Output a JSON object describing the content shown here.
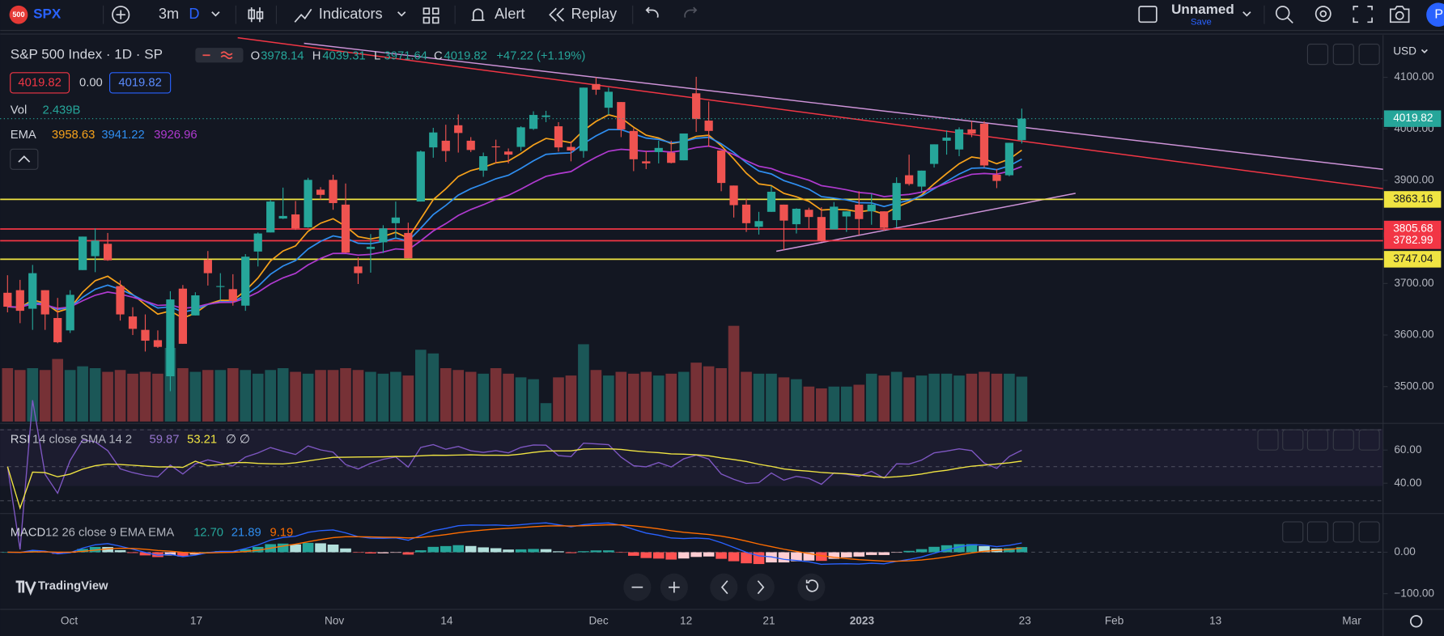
{
  "toolbar": {
    "symbol_badge": "500",
    "symbol": "SPX",
    "range": "3m",
    "interval": "D",
    "indicators": "Indicators",
    "alert": "Alert",
    "replay": "Replay",
    "layout_name": "Unnamed",
    "save": "Save",
    "avatar": "P"
  },
  "chart_data": {
    "type": "candlestick",
    "title": "S&P 500 Index · 1D · SP",
    "ohlc_legend": [
      {
        "label": "O",
        "value": 3978.14
      },
      {
        "label": "H",
        "value": 4039.31
      },
      {
        "label": "L",
        "value": 3971.64
      },
      {
        "label": "C",
        "value": 4019.82
      }
    ],
    "change": "+47.22 (+1.19%)",
    "trade_panel": [
      "4019.82",
      "0.00",
      "4019.82"
    ],
    "volume_legend": {
      "label": "Vol",
      "value": "2.439B"
    },
    "ema_legend": {
      "label": "EMA",
      "values": [
        3958.63,
        3941.22,
        3926.96
      ],
      "colors": [
        "#f7a21b",
        "#2f8ef0",
        "#b03ad0"
      ],
      "periods": [
        8,
        13,
        21
      ]
    },
    "currency": "USD",
    "up_color": "#26a69a",
    "down_color": "#ef5350",
    "yticks": [
      {
        "value": 4100,
        "label": "4100.00"
      },
      {
        "value": 4000,
        "label": "4000.00"
      },
      {
        "value": 3900,
        "label": "3900.00"
      },
      {
        "value": 3700,
        "label": "3700.00"
      },
      {
        "value": 3600,
        "label": "3600.00"
      },
      {
        "value": 3500,
        "label": "3500.00"
      }
    ],
    "levels": [
      {
        "value": 3863.16,
        "color": "#f0e442"
      },
      {
        "value": 3805.68,
        "color": "#f23645"
      },
      {
        "value": 3782.99,
        "color": "#f23645"
      },
      {
        "value": 3747.04,
        "color": "#f0e442"
      }
    ],
    "xticks": [
      "Oct",
      "17",
      "Nov",
      "14",
      "Dec",
      "12",
      "21",
      "2023",
      "23",
      "Feb",
      "13",
      "Mar"
    ],
    "open": [
      3682,
      3687,
      3651,
      3687,
      3633,
      3609,
      3726,
      3753,
      3777,
      3695,
      3636,
      3610,
      3590,
      3520,
      3690,
      3638,
      3746,
      3695,
      3689,
      3657,
      3762,
      3799,
      3826,
      3834,
      3809,
      3882,
      3901,
      3853,
      3733,
      3767,
      3780,
      3817,
      3798,
      3859,
      3964,
      3977,
      4007,
      3977,
      3919,
      3966,
      3956,
      3965,
      4000,
      4023,
      4005,
      3965,
      3957,
      4087,
      4041,
      4052,
      3996,
      3937,
      3955,
      3954,
      3939,
      4069,
      4016,
      3958,
      3890,
      3853,
      3810,
      3839,
      3853,
      3815,
      3843,
      3829,
      3805,
      3830,
      3853,
      3840,
      3840,
      3823,
      3910,
      3888,
      3932,
      3977,
      3960,
      3999,
      4010,
      3911,
      3910,
      3978.14
    ],
    "high": [
      3716,
      3707,
      3736,
      3687,
      3672,
      3687,
      3791,
      3807,
      3798,
      3706,
      3654,
      3640,
      3609,
      3685,
      3697,
      3683,
      3763,
      3720,
      3718,
      3757,
      3799,
      3862,
      3886,
      3860,
      3905,
      3887,
      3911,
      3894,
      3751,
      3796,
      3813,
      3859,
      3818,
      3958,
      4002,
      4008,
      4028,
      3984,
      3954,
      3979,
      3962,
      4005,
      4034,
      4035,
      4013,
      3976,
      4080,
      4100,
      4080,
      4052,
      4001,
      3957,
      3977,
      3977,
      3991,
      4101,
      4053,
      3958,
      3890,
      3864,
      3839,
      3889,
      3853,
      3846,
      3847,
      3848,
      3858,
      3840,
      3879,
      3874,
      3840,
      3906,
      3950,
      3919,
      3970,
      3997,
      4003,
      4015,
      4015,
      3922,
      3973,
      4039.31
    ],
    "low": [
      3644,
      3623,
      3610,
      3610,
      3584,
      3604,
      3726,
      3722,
      3744,
      3628,
      3600,
      3568,
      3575,
      3491,
      3583,
      3638,
      3696,
      3667,
      3657,
      3647,
      3733,
      3799,
      3825,
      3804,
      3808,
      3863,
      3843,
      3759,
      3699,
      3721,
      3759,
      3786,
      3749,
      3859,
      3944,
      3936,
      3954,
      3955,
      3907,
      3933,
      3933,
      3957,
      3998,
      4013,
      3956,
      3937,
      3944,
      4066,
      4027,
      3984,
      3918,
      3922,
      3933,
      3933,
      3939,
      3994,
      3965,
      3879,
      3828,
      3800,
      3795,
      3839,
      3765,
      3797,
      3807,
      3781,
      3805,
      3800,
      3794,
      3814,
      3802,
      3809,
      3890,
      3877,
      3925,
      3950,
      3947,
      3984,
      3925,
      3885,
      3908,
      3971.64
    ],
    "close": [
      3655,
      3647,
      3720,
      3640,
      3586,
      3678,
      3791,
      3783,
      3745,
      3640,
      3612,
      3589,
      3577,
      3669,
      3583,
      3677,
      3720,
      3695,
      3666,
      3752,
      3797,
      3859,
      3831,
      3807,
      3901,
      3872,
      3856,
      3760,
      3720,
      3771,
      3807,
      3828,
      3749,
      3956,
      3993,
      3957,
      3992,
      3959,
      3947,
      3965,
      3950,
      4003,
      4027,
      4026,
      3964,
      3958,
      4080,
      4076,
      4072,
      3999,
      3941,
      3933,
      3963,
      3934,
      3991,
      4019,
      3996,
      3895,
      3852,
      3817,
      3821,
      3878,
      3822,
      3845,
      3829,
      3783,
      3849,
      3840,
      3825,
      3853,
      3808,
      3895,
      3893,
      3919,
      3970,
      3983,
      3999,
      3991,
      3929,
      3899,
      3973,
      4019.82
    ],
    "volume": [
      2.9,
      2.8,
      2.9,
      2.8,
      3.4,
      2.8,
      3.0,
      2.9,
      2.7,
      2.8,
      2.6,
      2.7,
      2.6,
      4.0,
      2.9,
      2.7,
      2.8,
      2.8,
      2.9,
      2.8,
      2.6,
      2.8,
      2.9,
      2.7,
      2.6,
      2.8,
      2.8,
      2.9,
      2.8,
      2.7,
      2.6,
      2.7,
      2.5,
      3.9,
      3.7,
      2.9,
      2.8,
      2.7,
      2.6,
      2.9,
      2.6,
      2.4,
      2.3,
      1.0,
      2.4,
      2.5,
      4.2,
      2.8,
      2.5,
      2.7,
      2.6,
      2.7,
      2.5,
      2.6,
      2.7,
      3.2,
      3.0,
      2.9,
      5.2,
      2.7,
      2.6,
      2.6,
      2.4,
      2.3,
      1.9,
      1.8,
      1.9,
      1.9,
      2.0,
      2.6,
      2.5,
      2.7,
      2.4,
      2.5,
      2.6,
      2.6,
      2.5,
      2.6,
      2.7,
      2.6,
      2.6,
      2.439
    ],
    "rsi": {
      "label": "RSI",
      "params": "14 close SMA 14 2",
      "values": [
        "59.87",
        "53.21"
      ],
      "extra": "∅ ∅",
      "yticks": [
        {
          "value": 60,
          "label": "60.00"
        },
        {
          "value": 40,
          "label": "40.00"
        }
      ]
    },
    "macd": {
      "label": "MACD",
      "params": "12 26 close 9 EMA EMA",
      "values": [
        "12.70",
        "21.89",
        "9.19"
      ],
      "yticks": [
        {
          "value": 0,
          "label": "0.00"
        },
        {
          "value": -100,
          "label": "−100.00"
        }
      ]
    },
    "branding": "TradingView"
  }
}
